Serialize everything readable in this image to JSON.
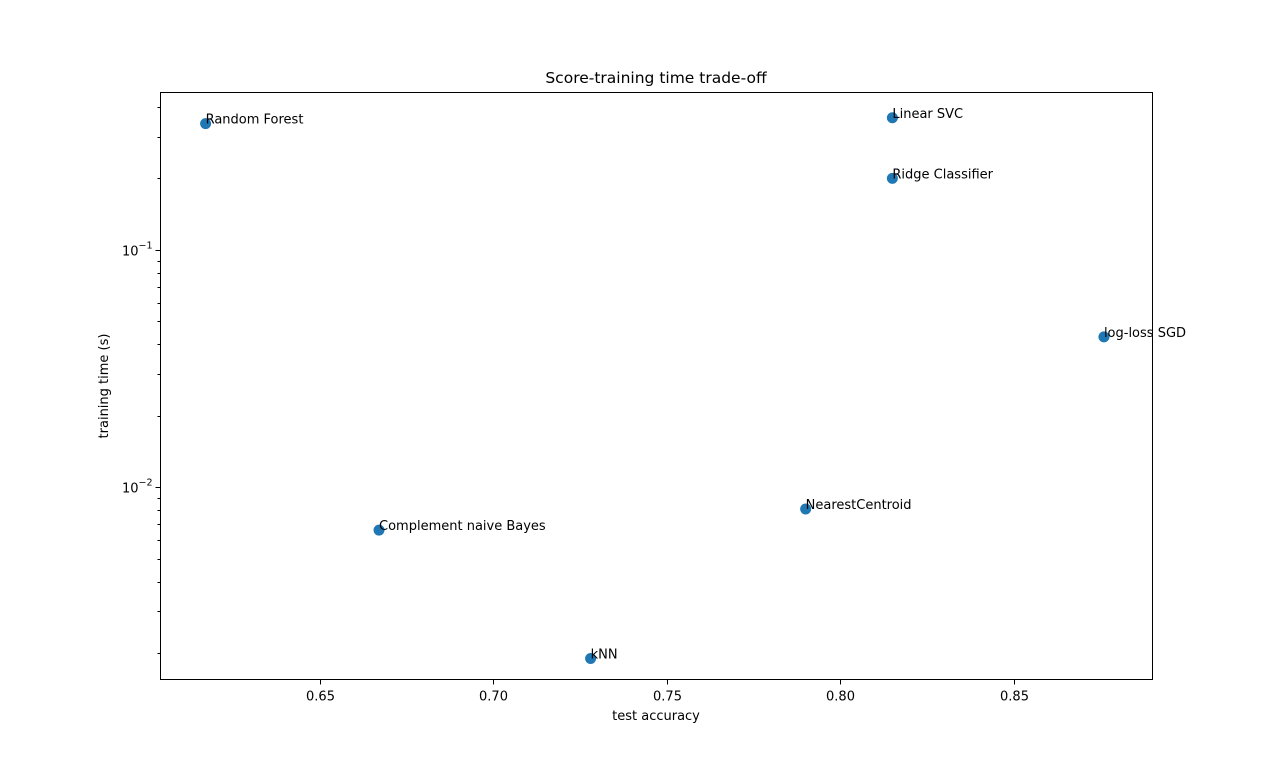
{
  "chart_data": {
    "type": "scatter",
    "title": "Score-training time trade-off",
    "xlabel": "test accuracy",
    "ylabel": "training time (s)",
    "xscale": "linear",
    "yscale": "log",
    "xlim": [
      0.604,
      0.89
    ],
    "ylim": [
      0.00155,
      0.46
    ],
    "grid": false,
    "marker_color": "#1f77b4",
    "x_ticks": [
      {
        "value": 0.65,
        "label": "0.65"
      },
      {
        "value": 0.7,
        "label": "0.70"
      },
      {
        "value": 0.75,
        "label": "0.75"
      },
      {
        "value": 0.8,
        "label": "0.80"
      },
      {
        "value": 0.85,
        "label": "0.85"
      }
    ],
    "y_major_ticks": [
      {
        "value": 0.01,
        "base": "10",
        "exponent": "−2"
      },
      {
        "value": 0.1,
        "base": "10",
        "exponent": "−1"
      }
    ],
    "y_minor_ticks": [
      0.002,
      0.003,
      0.004,
      0.005,
      0.006,
      0.007,
      0.008,
      0.009,
      0.02,
      0.03,
      0.04,
      0.05,
      0.06,
      0.07,
      0.08,
      0.09,
      0.2,
      0.3,
      0.4
    ],
    "points": [
      {
        "label": "Random Forest",
        "x": 0.617,
        "y": 0.34
      },
      {
        "label": "Linear SVC",
        "x": 0.815,
        "y": 0.36
      },
      {
        "label": "Ridge Classifier",
        "x": 0.815,
        "y": 0.2
      },
      {
        "label": "log-loss SGD",
        "x": 0.876,
        "y": 0.043
      },
      {
        "label": "NearestCentroid",
        "x": 0.79,
        "y": 0.0081
      },
      {
        "label": "Complement naive Bayes",
        "x": 0.667,
        "y": 0.0066
      },
      {
        "label": "kNN",
        "x": 0.728,
        "y": 0.0019
      }
    ]
  }
}
